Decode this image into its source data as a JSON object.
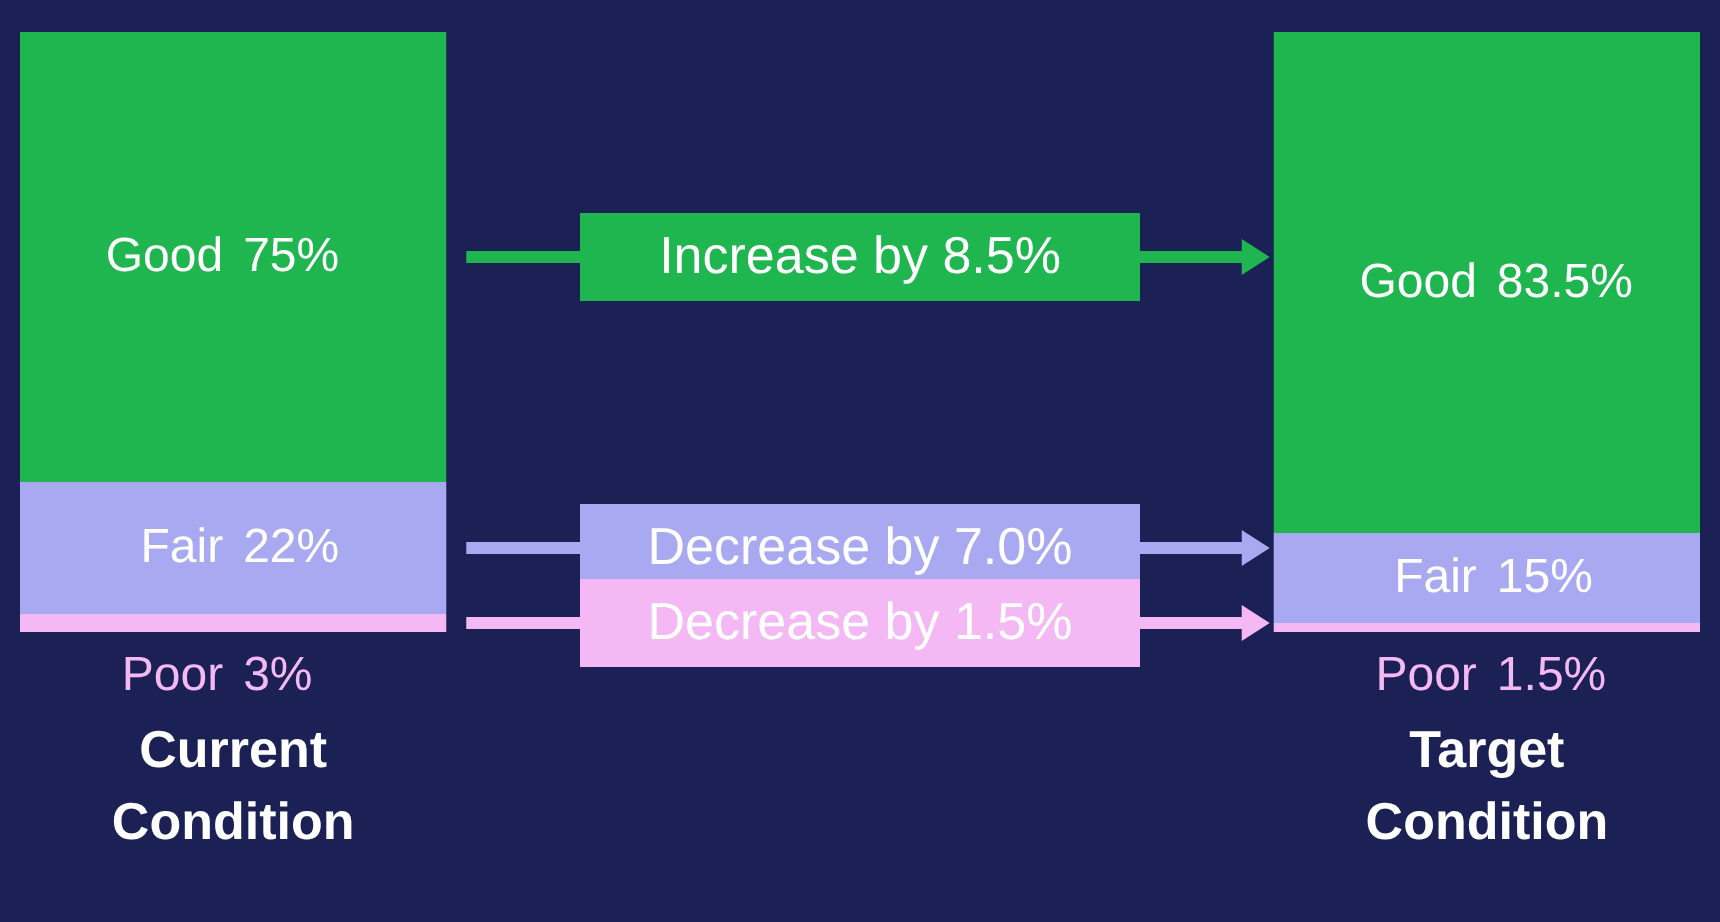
{
  "chart_data": {
    "type": "bar",
    "stacked": true,
    "tick_labels": "x",
    "categories": [
      "Current Condition",
      "Target Condition"
    ],
    "series": [
      {
        "name": "Poor",
        "color": "#f4b8f4",
        "values": [
          3,
          1.5
        ],
        "value_labels": [
          "3%",
          "1.5%"
        ]
      },
      {
        "name": "Fair",
        "color": "#a9a9f2",
        "values": [
          22,
          15
        ],
        "value_labels": [
          "22%",
          "15%"
        ]
      },
      {
        "name": "Good",
        "color": "#1fb650",
        "values": [
          75,
          83.5
        ],
        "value_labels": [
          "75%",
          "83.5%"
        ]
      }
    ],
    "annotations": [
      "Increase by 8.5%",
      "Decrease by 7.0%",
      "Decrease by 1.5%"
    ]
  }
}
